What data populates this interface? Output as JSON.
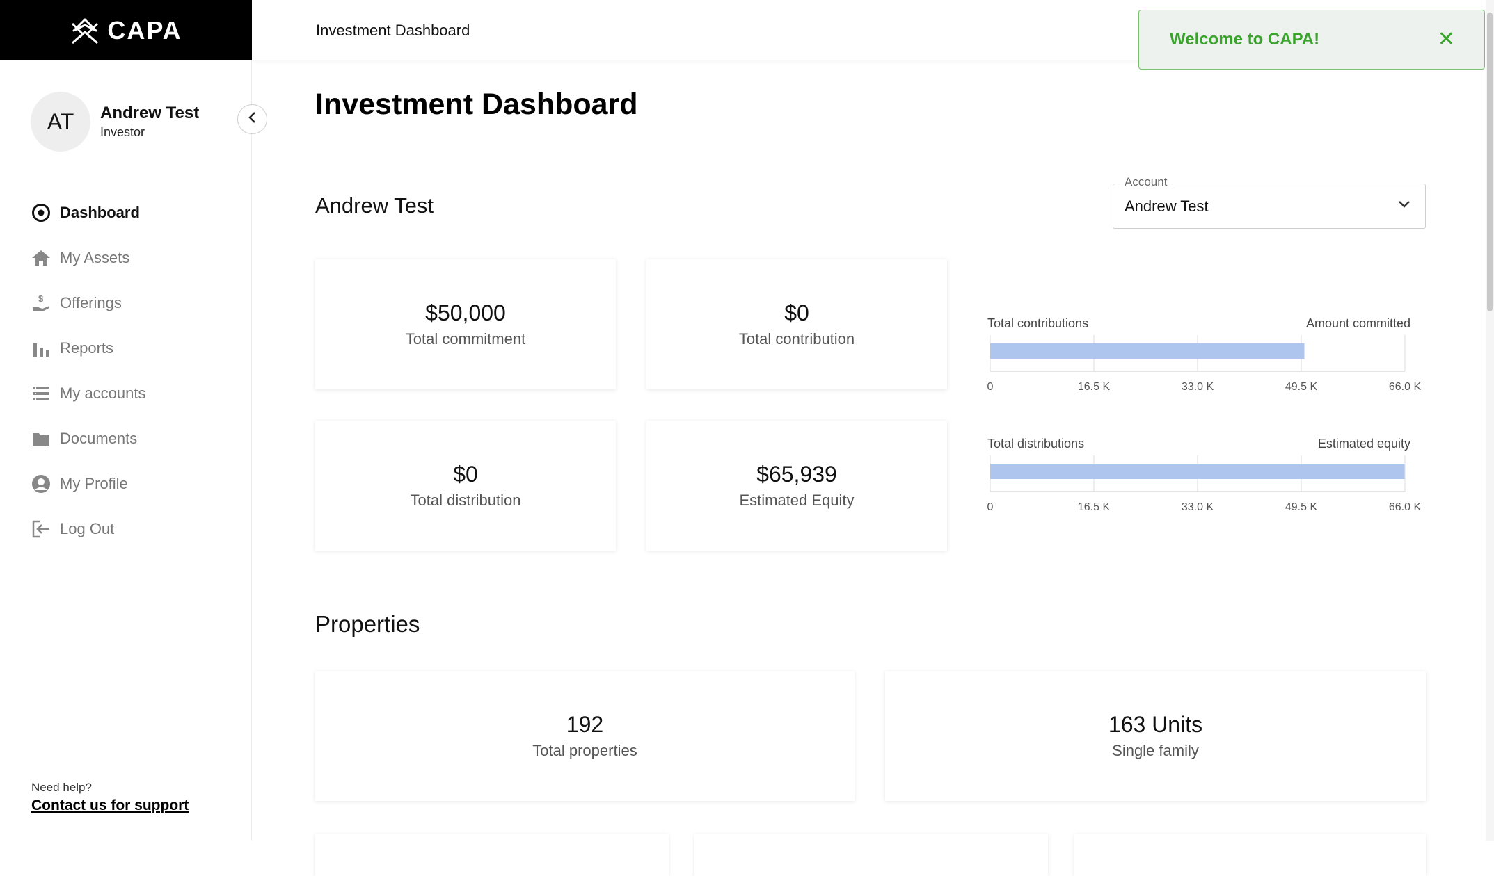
{
  "brand": {
    "name": "CAPA",
    "logo_icon": "capa-logo-icon"
  },
  "user": {
    "initials": "AT",
    "name": "Andrew Test",
    "role": "Investor"
  },
  "nav": [
    {
      "label": "Dashboard",
      "icon": "target-icon",
      "active": true
    },
    {
      "label": "My Assets",
      "icon": "home-icon",
      "active": false
    },
    {
      "label": "Offerings",
      "icon": "hand-dollar-icon",
      "active": false
    },
    {
      "label": "Reports",
      "icon": "bar-chart-icon",
      "active": false
    },
    {
      "label": "My accounts",
      "icon": "list-icon",
      "active": false
    },
    {
      "label": "Documents",
      "icon": "folder-icon",
      "active": false
    },
    {
      "label": "My Profile",
      "icon": "user-circle-icon",
      "active": false
    },
    {
      "label": "Log Out",
      "icon": "logout-icon",
      "active": false
    }
  ],
  "help": {
    "label": "Need help?",
    "link": "Contact us for support"
  },
  "topbar": {
    "title": "Investment Dashboard"
  },
  "toast": {
    "message": "Welcome to CAPA!",
    "close": "✕"
  },
  "main": {
    "title": "Investment Dashboard",
    "account_name": "Andrew Test",
    "account_select": {
      "legend": "Account",
      "value": "Andrew Test"
    }
  },
  "cards": [
    {
      "value": "$50,000",
      "label": "Total commitment"
    },
    {
      "value": "$0",
      "label": "Total contribution"
    },
    {
      "value": "$0",
      "label": "Total distribution"
    },
    {
      "value": "$65,939",
      "label": "Estimated Equity"
    }
  ],
  "chart_data": [
    {
      "type": "bar",
      "orientation": "horizontal",
      "left_label": "Total contributions",
      "right_label": "Amount committed",
      "value": 50000,
      "xlim": [
        0,
        66000
      ],
      "ticks": [
        "0",
        "16.5 K",
        "33.0 K",
        "49.5 K",
        "66.0 K"
      ],
      "bar_color": "#aec6ee",
      "grid": true
    },
    {
      "type": "bar",
      "orientation": "horizontal",
      "left_label": "Total distributions",
      "right_label": "Estimated equity",
      "value": 65939,
      "xlim": [
        0,
        66000
      ],
      "ticks": [
        "0",
        "16.5 K",
        "33.0 K",
        "49.5 K",
        "66.0 K"
      ],
      "bar_color": "#aec6ee",
      "grid": true
    }
  ],
  "properties": {
    "title": "Properties",
    "cards": [
      {
        "value": "192",
        "label": "Total properties"
      },
      {
        "value": "163 Units",
        "label": "Single family"
      }
    ]
  }
}
